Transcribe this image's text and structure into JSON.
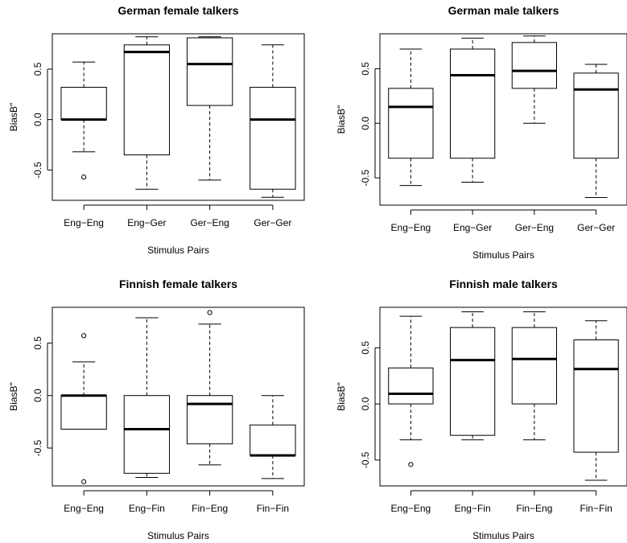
{
  "chart_data": [
    {
      "type": "boxplot",
      "title": "German female talkers",
      "xlabel": "Stimulus Pairs",
      "ylabel": "BiasB\"",
      "ylim": [
        -0.8,
        0.85
      ],
      "yticks": [
        -0.5,
        0.0,
        0.5
      ],
      "ytick_labels": [
        "-0.5",
        "0.0",
        "0.5"
      ],
      "categories": [
        "Eng−Eng",
        "Eng−Ger",
        "Ger−Eng",
        "Ger−Ger"
      ],
      "boxes": [
        {
          "whisker_low": -0.32,
          "q1": 0.0,
          "median": 0.0,
          "q3": 0.32,
          "whisker_high": 0.57,
          "outliers": [
            -0.57
          ]
        },
        {
          "whisker_low": -0.69,
          "q1": -0.35,
          "median": 0.67,
          "q3": 0.74,
          "whisker_high": 0.82,
          "outliers": []
        },
        {
          "whisker_low": -0.6,
          "q1": 0.14,
          "median": 0.55,
          "q3": 0.81,
          "whisker_high": 0.82,
          "outliers": []
        },
        {
          "whisker_low": -0.77,
          "q1": -0.69,
          "median": 0.0,
          "q3": 0.32,
          "whisker_high": 0.74,
          "outliers": []
        }
      ]
    },
    {
      "type": "boxplot",
      "title": "German male talkers",
      "xlabel": "Stimulus Pairs",
      "ylabel": "BiasB\"",
      "ylim": [
        -0.75,
        0.82
      ],
      "yticks": [
        -0.5,
        0.0,
        0.5
      ],
      "ytick_labels": [
        "-0.5",
        "0.0",
        "0.5"
      ],
      "categories": [
        "Eng−Eng",
        "Eng−Ger",
        "Ger−Eng",
        "Ger−Ger"
      ],
      "boxes": [
        {
          "whisker_low": -0.57,
          "q1": -0.32,
          "median": 0.15,
          "q3": 0.32,
          "whisker_high": 0.68,
          "outliers": []
        },
        {
          "whisker_low": -0.54,
          "q1": -0.32,
          "median": 0.44,
          "q3": 0.68,
          "whisker_high": 0.78,
          "outliers": []
        },
        {
          "whisker_low": 0.0,
          "q1": 0.32,
          "median": 0.48,
          "q3": 0.74,
          "whisker_high": 0.8,
          "outliers": []
        },
        {
          "whisker_low": -0.68,
          "q1": -0.32,
          "median": 0.31,
          "q3": 0.46,
          "whisker_high": 0.54,
          "outliers": []
        }
      ]
    },
    {
      "type": "boxplot",
      "title": "Finnish female talkers",
      "xlabel": "Stimulus Pairs",
      "ylabel": "BiasB\"",
      "ylim": [
        -0.86,
        0.84
      ],
      "yticks": [
        -0.5,
        0.0,
        0.5
      ],
      "ytick_labels": [
        "-0.5",
        "0.0",
        "0.5"
      ],
      "categories": [
        "Eng−Eng",
        "Eng−Fin",
        "Fin−Eng",
        "Fin−Fin"
      ],
      "boxes": [
        {
          "whisker_low": -0.32,
          "q1": -0.32,
          "median": 0.0,
          "q3": 0.0,
          "whisker_high": 0.32,
          "outliers": [
            0.57,
            -0.82
          ]
        },
        {
          "whisker_low": -0.78,
          "q1": -0.74,
          "median": -0.32,
          "q3": 0.0,
          "whisker_high": 0.74,
          "outliers": []
        },
        {
          "whisker_low": -0.66,
          "q1": -0.46,
          "median": -0.08,
          "q3": 0.0,
          "whisker_high": 0.68,
          "outliers": [
            0.79
          ]
        },
        {
          "whisker_low": -0.79,
          "q1": -0.57,
          "median": -0.57,
          "q3": -0.28,
          "whisker_high": 0.0,
          "outliers": []
        }
      ]
    },
    {
      "type": "boxplot",
      "title": "Finnish male talkers",
      "xlabel": "Stimulus Pairs",
      "ylabel": "BiasB\"",
      "ylim": [
        -0.73,
        0.86
      ],
      "yticks": [
        -0.5,
        0.0,
        0.5
      ],
      "ytick_labels": [
        "-0.5",
        "0.0",
        "0.5"
      ],
      "categories": [
        "Eng−Eng",
        "Eng−Fin",
        "Fin−Eng",
        "Fin−Fin"
      ],
      "boxes": [
        {
          "whisker_low": -0.32,
          "q1": 0.0,
          "median": 0.09,
          "q3": 0.32,
          "whisker_high": 0.78,
          "outliers": [
            -0.54
          ]
        },
        {
          "whisker_low": -0.32,
          "q1": -0.28,
          "median": 0.39,
          "q3": 0.68,
          "whisker_high": 0.82,
          "outliers": []
        },
        {
          "whisker_low": -0.32,
          "q1": 0.0,
          "median": 0.4,
          "q3": 0.68,
          "whisker_high": 0.82,
          "outliers": []
        },
        {
          "whisker_low": -0.68,
          "q1": -0.43,
          "median": 0.31,
          "q3": 0.57,
          "whisker_high": 0.74,
          "outliers": []
        }
      ]
    }
  ]
}
